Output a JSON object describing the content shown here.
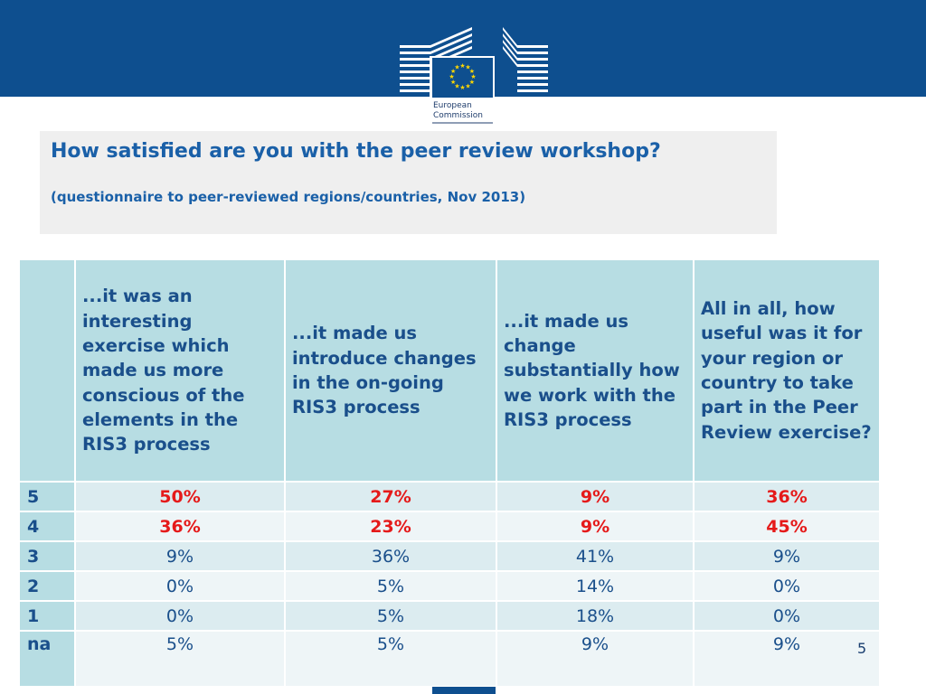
{
  "header": {
    "logo": {
      "line1": "European",
      "line2": "Commission"
    }
  },
  "title": {
    "main": "How satisfied are you with the peer review workshop?",
    "sub": "(questionnaire to peer-reviewed regions/countries, Nov 2013)"
  },
  "table": {
    "columns": [
      "",
      "...it was an interesting exercise which made us more conscious of the elements in the RIS3 process",
      "...it made us introduce changes in the on-going RIS3 process",
      "...it made us change substantially how we work with the RIS3 process",
      "All in all, how useful was it for your region or country to take part in the Peer Review exercise?"
    ],
    "rows": [
      {
        "label": "5",
        "values": [
          "50%",
          "27%",
          "9%",
          "36%"
        ],
        "highlight": true
      },
      {
        "label": "4",
        "values": [
          "36%",
          "23%",
          "9%",
          "45%"
        ],
        "highlight": true
      },
      {
        "label": "3",
        "values": [
          "9%",
          "36%",
          "41%",
          "9%"
        ],
        "highlight": false
      },
      {
        "label": "2",
        "values": [
          "0%",
          "5%",
          "14%",
          "0%"
        ],
        "highlight": false
      },
      {
        "label": "1",
        "values": [
          "0%",
          "5%",
          "18%",
          "0%"
        ],
        "highlight": false
      },
      {
        "label": "na",
        "values": [
          "5%",
          "5%",
          "9%",
          "9%"
        ],
        "highlight": false
      }
    ]
  },
  "footer": {
    "page_number": "5"
  },
  "colors": {
    "brand_blue": "#0e4f8f",
    "header_teal": "#b7dde3",
    "highlight_red": "#e51a1a",
    "text_blue": "#1a4f8b"
  }
}
